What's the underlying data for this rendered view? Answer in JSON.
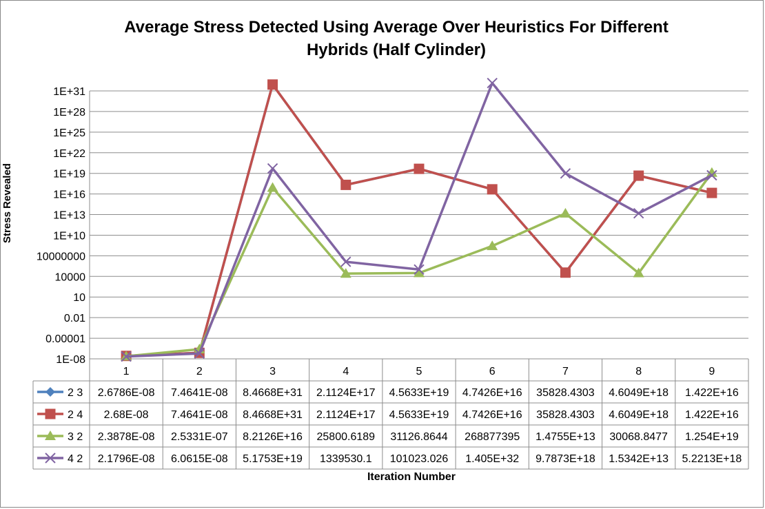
{
  "chart_data": {
    "type": "line",
    "title_line1": "Average Stress Detected Using Average Over Heuristics For Different",
    "title_line2": "Hybrids (Half Cylinder)",
    "xlabel": "Iteration Number",
    "ylabel": "Stress Revealed",
    "y_scale": "log",
    "y_ticks": [
      "1E-08",
      "0.00001",
      "0.01",
      "10",
      "10000",
      "10000000",
      "1E+10",
      "1E+13",
      "1E+16",
      "1E+19",
      "1E+22",
      "1E+25",
      "1E+28",
      "1E+31"
    ],
    "categories": [
      "1",
      "2",
      "3",
      "4",
      "5",
      "6",
      "7",
      "8",
      "9"
    ],
    "series": [
      {
        "name": "2 3",
        "color": "#4F81BD",
        "marker": "diamond",
        "values": [
          2.6786e-08,
          7.4641e-08,
          8.4668e+31,
          2.1124e+17,
          4.5633e+19,
          4.7426e+16,
          35828.4303,
          4.6049e+18,
          1.422e+16
        ],
        "labels": [
          "2.6786E-08",
          "7.4641E-08",
          "8.4668E+31",
          "2.1124E+17",
          "4.5633E+19",
          "4.7426E+16",
          "35828.4303",
          "4.6049E+18",
          "1.422E+16"
        ]
      },
      {
        "name": "2 4",
        "color": "#C0504D",
        "marker": "square",
        "values": [
          2.68e-08,
          7.4641e-08,
          8.4668e+31,
          2.1124e+17,
          4.5633e+19,
          4.7426e+16,
          35828.4303,
          4.6049e+18,
          1.422e+16
        ],
        "labels": [
          "2.68E-08",
          "7.4641E-08",
          "8.4668E+31",
          "2.1124E+17",
          "4.5633E+19",
          "4.7426E+16",
          "35828.4303",
          "4.6049E+18",
          "1.422E+16"
        ]
      },
      {
        "name": "3 2",
        "color": "#9BBB59",
        "marker": "triangle",
        "values": [
          2.3878e-08,
          2.5331e-07,
          8.2126e+16,
          25800.6189,
          31126.8644,
          268877395,
          14755000000000.0,
          30068.8477,
          1.254e+19
        ],
        "labels": [
          "2.3878E-08",
          "2.5331E-07",
          "8.2126E+16",
          "25800.6189",
          "31126.8644",
          "268877395",
          "1.4755E+13",
          "30068.8477",
          "1.254E+19"
        ]
      },
      {
        "name": "4 2",
        "color": "#8064A2",
        "marker": "x",
        "values": [
          2.1796e-08,
          6.0615e-08,
          5.1753e+19,
          1339530.1,
          101023.026,
          1.405e+32,
          9.7873e+18,
          15342000000000.0,
          5.2213e+18
        ],
        "labels": [
          "2.1796E-08",
          "6.0615E-08",
          "5.1753E+19",
          "1339530.1",
          "101023.026",
          "1.405E+32",
          "9.7873E+18",
          "1.5342E+13",
          "5.2213E+18"
        ]
      }
    ]
  }
}
